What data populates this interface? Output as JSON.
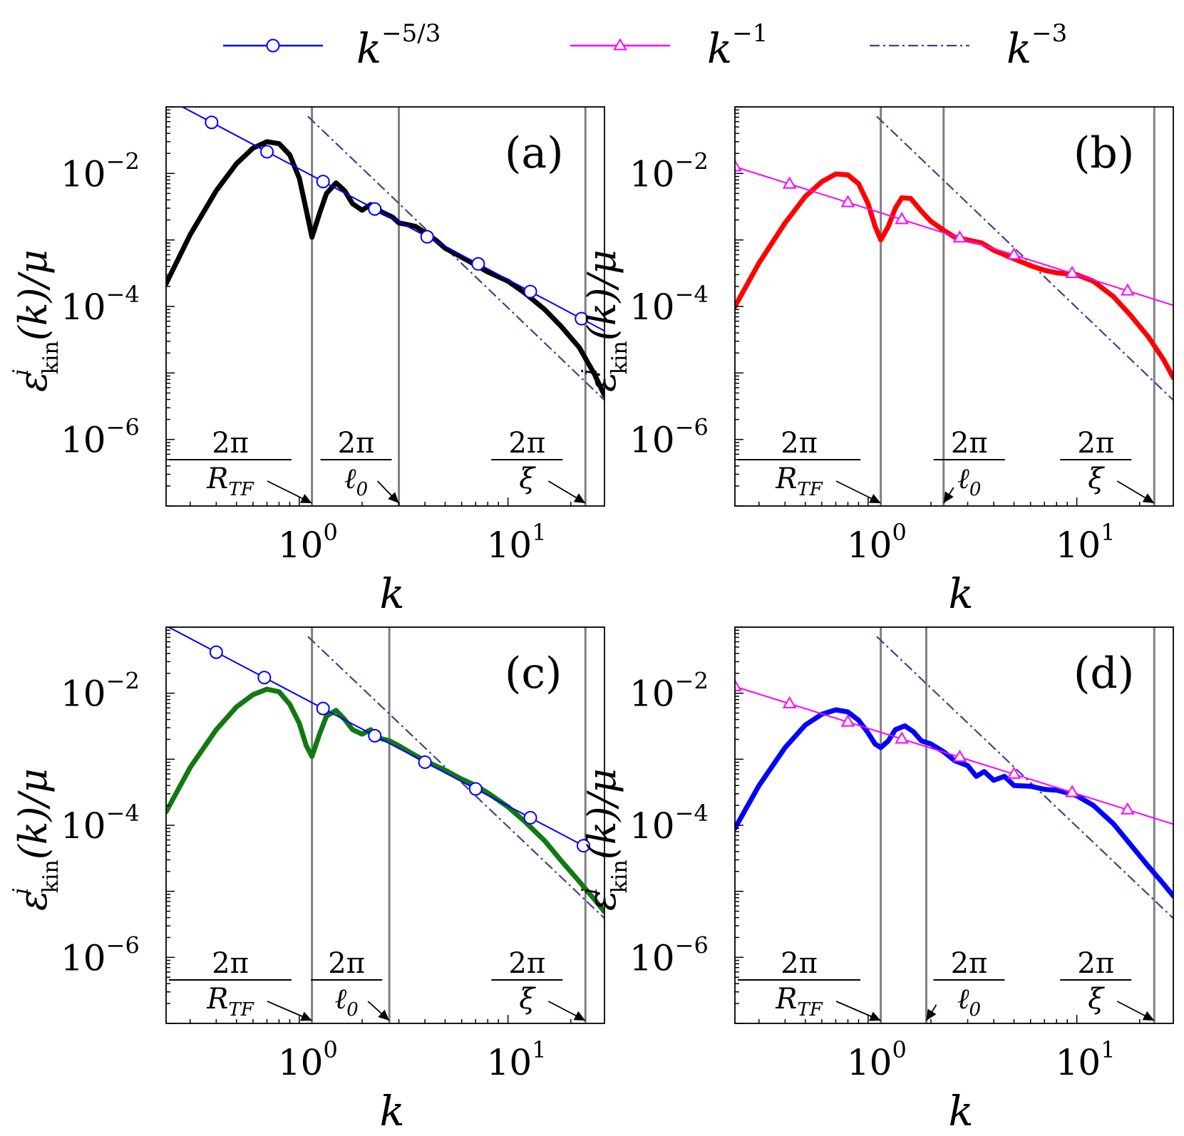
{
  "legend": {
    "items": [
      {
        "key": "k53",
        "base": "k",
        "exponent": "−5/3",
        "color": "#0000ff",
        "marker": "circle",
        "dash": "solid"
      },
      {
        "key": "k1",
        "base": "k",
        "exponent": "−1",
        "color": "#ff00ff",
        "marker": "triangle",
        "dash": "solid"
      },
      {
        "key": "k3",
        "base": "k",
        "exponent": "−3",
        "color": "#483d8b",
        "marker": "none",
        "dash": "dashdot"
      }
    ]
  },
  "axes": {
    "xlabel": "k",
    "ylabel_base": "ε",
    "ylabel_sup": "i",
    "ylabel_sub": "kin",
    "ylabel_tail": "(k)/μ",
    "x_ticks": [
      {
        "value": 1,
        "mant": "10",
        "exp": "0"
      },
      {
        "value": 10,
        "exp": "1",
        "mant": "10"
      }
    ],
    "y_ticks": [
      {
        "value": 0.01,
        "mant": "10",
        "exp": "−2"
      },
      {
        "value": 0.0001,
        "mant": "10",
        "exp": "−4"
      },
      {
        "value": 1e-06,
        "mant": "10",
        "exp": "−6"
      }
    ],
    "xlim": [
      0.23,
      29
    ],
    "ylim": [
      1e-07,
      0.1
    ],
    "xscale": "log",
    "yscale": "log"
  },
  "scale_labels": {
    "rtf": {
      "num": "2π",
      "den": "R",
      "den_sub": "TF"
    },
    "l0": {
      "num": "2π",
      "den": "ℓ",
      "den_sub": "0"
    },
    "xi": {
      "num": "2π",
      "den": "ξ",
      "den_sub": ""
    }
  },
  "chart_data": [
    {
      "type": "line",
      "panel_label": "(a)",
      "curve_color": "#000000",
      "vlines": {
        "rtf": 1.15,
        "l0": 3.0,
        "xi": 23.5
      },
      "reference": {
        "key": "k53",
        "k": [
          0.23,
          29
        ],
        "e": [
          0.135,
          4.29e-05
        ],
        "markers_k": [
          0.38,
          0.7,
          1.3,
          2.3,
          4.1,
          7.2,
          12.8,
          22.5
        ]
      },
      "k3_line": {
        "k": [
          1.1,
          29
        ],
        "e": [
          0.072,
          3.9e-06
        ]
      },
      "spectrum": {
        "k": [
          0.23,
          0.3,
          0.4,
          0.5,
          0.6,
          0.7,
          0.8,
          0.9,
          1.0,
          1.08,
          1.15,
          1.25,
          1.35,
          1.5,
          1.65,
          1.8,
          2.0,
          2.2,
          2.5,
          2.8,
          3.0,
          3.3,
          3.6,
          4.0,
          4.5,
          5.0,
          6.0,
          7.0,
          8.0,
          10.0,
          12.0,
          15.0,
          18.0,
          22.0,
          26.0,
          29.0
        ],
        "e": [
          0.00022,
          0.0012,
          0.0055,
          0.014,
          0.024,
          0.03,
          0.028,
          0.019,
          0.0085,
          0.0028,
          0.0011,
          0.0025,
          0.005,
          0.0072,
          0.0055,
          0.0035,
          0.0028,
          0.0034,
          0.0026,
          0.0022,
          0.0018,
          0.0017,
          0.0016,
          0.0013,
          0.001,
          0.00075,
          0.00055,
          0.00042,
          0.00033,
          0.00024,
          0.00016,
          9e-05,
          5e-05,
          2.4e-05,
          9.5e-06,
          4.6e-06
        ]
      }
    },
    {
      "type": "line",
      "panel_label": "(b)",
      "curve_color": "#ff0000",
      "vlines": {
        "rtf": 1.15,
        "l0": 2.3,
        "xi": 23.5
      },
      "reference": {
        "key": "k1",
        "k": [
          0.23,
          29
        ],
        "e": [
          0.0126,
          0.000104
        ],
        "markers_k": [
          0.23,
          0.42,
          0.8,
          1.45,
          2.75,
          5.0,
          9.5,
          17.5
        ]
      },
      "k3_line": {
        "k": [
          1.1,
          29
        ],
        "e": [
          0.072,
          3.9e-06
        ]
      },
      "spectrum": {
        "k": [
          0.23,
          0.3,
          0.4,
          0.5,
          0.6,
          0.7,
          0.8,
          0.9,
          1.0,
          1.08,
          1.15,
          1.25,
          1.35,
          1.45,
          1.6,
          1.8,
          2.0,
          2.3,
          2.6,
          3.0,
          3.5,
          4.0,
          5.0,
          6.0,
          7.0,
          8.0,
          9.0,
          10.0,
          12.0,
          15.0,
          18.0,
          22.0,
          26.0,
          29.0
        ],
        "e": [
          0.0001,
          0.00045,
          0.0018,
          0.0045,
          0.0075,
          0.0098,
          0.0095,
          0.007,
          0.0035,
          0.0016,
          0.001,
          0.0016,
          0.003,
          0.0043,
          0.0042,
          0.0027,
          0.0019,
          0.0014,
          0.0011,
          0.001,
          0.0009,
          0.0007,
          0.00052,
          0.00041,
          0.00035,
          0.00032,
          0.00031,
          0.0003,
          0.00024,
          0.00014,
          7.5e-05,
          3.5e-05,
          1.6e-05,
          8.5e-06
        ]
      }
    },
    {
      "type": "line",
      "panel_label": "(c)",
      "curve_color": "#127812",
      "vlines": {
        "rtf": 1.15,
        "l0": 2.7,
        "xi": 23.5
      },
      "reference": {
        "key": "k53",
        "k": [
          0.23,
          29
        ],
        "e": [
          0.105,
          3.33e-05
        ],
        "markers_k": [
          0.4,
          0.68,
          1.3,
          2.3,
          4.0,
          7.0,
          12.8,
          23.0
        ]
      },
      "k3_line": {
        "k": [
          1.1,
          29
        ],
        "e": [
          0.072,
          3.9e-06
        ]
      },
      "spectrum": {
        "k": [
          0.23,
          0.3,
          0.4,
          0.5,
          0.6,
          0.7,
          0.8,
          0.9,
          1.0,
          1.08,
          1.15,
          1.25,
          1.35,
          1.5,
          1.65,
          1.8,
          2.0,
          2.2,
          2.4,
          2.7,
          3.0,
          3.5,
          4.0,
          5.0,
          6.0,
          7.0,
          8.0,
          10.0,
          12.0,
          15.0,
          18.0,
          22.0,
          26.0,
          29.0
        ],
        "e": [
          0.00016,
          0.00075,
          0.0028,
          0.0062,
          0.0095,
          0.0115,
          0.0105,
          0.0068,
          0.0035,
          0.0016,
          0.0011,
          0.0024,
          0.0045,
          0.0055,
          0.004,
          0.0028,
          0.0024,
          0.0028,
          0.0021,
          0.0019,
          0.0016,
          0.0012,
          0.00095,
          0.00068,
          0.0005,
          0.0004,
          0.00031,
          0.00019,
          0.000115,
          5.8e-05,
          2.9e-05,
          1.4e-05,
          7.5e-06,
          4.9e-06
        ]
      }
    },
    {
      "type": "line",
      "panel_label": "(d)",
      "curve_color": "#0000ff",
      "vlines": {
        "rtf": 1.15,
        "l0": 1.9,
        "xi": 23.5
      },
      "reference": {
        "key": "k1",
        "k": [
          0.23,
          29
        ],
        "e": [
          0.0126,
          0.000104
        ],
        "markers_k": [
          0.23,
          0.42,
          0.8,
          1.45,
          2.75,
          5.0,
          9.5,
          17.5
        ]
      },
      "k3_line": {
        "k": [
          1.1,
          29
        ],
        "e": [
          0.072,
          3.9e-06
        ]
      },
      "spectrum": {
        "k": [
          0.23,
          0.3,
          0.4,
          0.5,
          0.6,
          0.7,
          0.8,
          0.9,
          1.0,
          1.08,
          1.15,
          1.25,
          1.35,
          1.5,
          1.65,
          1.8,
          2.0,
          2.3,
          2.6,
          3.0,
          3.3,
          3.6,
          4.0,
          4.5,
          5.0,
          6.0,
          7.0,
          8.0,
          9.0,
          10.0,
          12.0,
          15.0,
          18.0,
          22.0,
          26.0,
          29.0
        ],
        "e": [
          9e-05,
          0.0004,
          0.0015,
          0.0033,
          0.0048,
          0.0056,
          0.0052,
          0.0039,
          0.0025,
          0.0017,
          0.0015,
          0.0019,
          0.0028,
          0.0032,
          0.0026,
          0.0019,
          0.0017,
          0.0013,
          0.00095,
          0.0008,
          0.00055,
          0.00065,
          0.00048,
          0.00055,
          0.0004,
          0.00039,
          0.00035,
          0.00034,
          0.00031,
          0.00028,
          0.0002,
          0.000105,
          5.2e-05,
          2.4e-05,
          1.3e-05,
          8.5e-06
        ]
      }
    }
  ]
}
